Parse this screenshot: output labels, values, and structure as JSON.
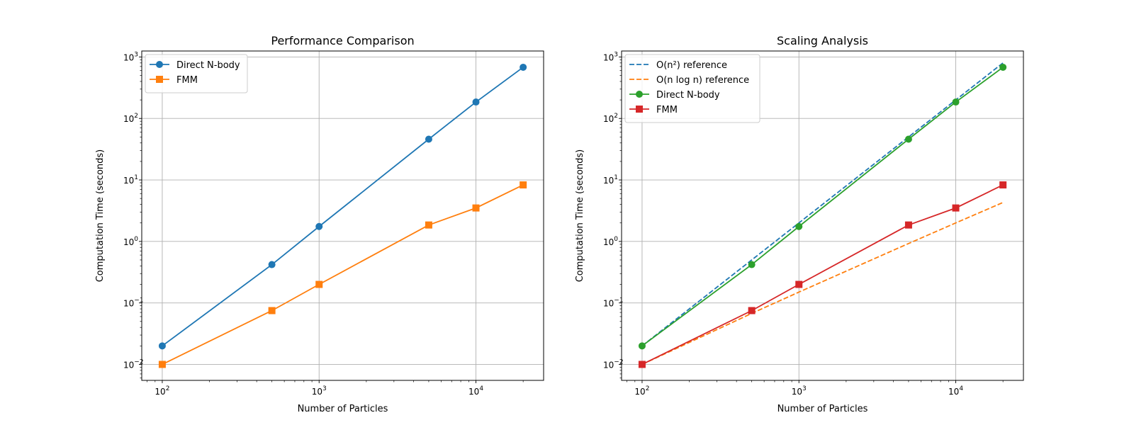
{
  "chart_data": [
    {
      "type": "line",
      "title": "Performance Comparison",
      "xlabel": "Number of Particles",
      "ylabel": "Computation Time (seconds)",
      "xscale": "log",
      "yscale": "log",
      "xlim": [
        74,
        27000
      ],
      "ylim": [
        0.0055,
        1250
      ],
      "xticks": [
        {
          "base": "10",
          "exp": "2",
          "value": 100
        },
        {
          "base": "10",
          "exp": "3",
          "value": 1000
        },
        {
          "base": "10",
          "exp": "4",
          "value": 10000
        }
      ],
      "yticks": [
        {
          "base": "10",
          "exp": "−2",
          "value": 0.01
        },
        {
          "base": "10",
          "exp": "−1",
          "value": 0.1
        },
        {
          "base": "10",
          "exp": "0",
          "value": 1
        },
        {
          "base": "10",
          "exp": "1",
          "value": 10
        },
        {
          "base": "10",
          "exp": "2",
          "value": 100
        },
        {
          "base": "10",
          "exp": "3",
          "value": 1000
        }
      ],
      "grid": true,
      "legend_position": "upper left",
      "series": [
        {
          "name": "Direct N-body",
          "color": "#1f77b4",
          "marker": "circle",
          "linestyle": "solid",
          "x": [
            100,
            500,
            1000,
            5000,
            10000,
            20000
          ],
          "values": [
            0.02,
            0.42,
            1.75,
            46,
            185,
            680
          ]
        },
        {
          "name": "FMM",
          "color": "#ff7f0e",
          "marker": "square",
          "linestyle": "solid",
          "x": [
            100,
            500,
            1000,
            5000,
            10000,
            20000
          ],
          "values": [
            0.01,
            0.075,
            0.2,
            1.85,
            3.5,
            8.3
          ]
        }
      ]
    },
    {
      "type": "line",
      "title": "Scaling Analysis",
      "xlabel": "Number of Particles",
      "ylabel": "Computation Time (seconds)",
      "xscale": "log",
      "yscale": "log",
      "xlim": [
        74,
        27000
      ],
      "ylim": [
        0.0055,
        1250
      ],
      "xticks": [
        {
          "base": "10",
          "exp": "2",
          "value": 100
        },
        {
          "base": "10",
          "exp": "3",
          "value": 1000
        },
        {
          "base": "10",
          "exp": "4",
          "value": 10000
        }
      ],
      "yticks": [
        {
          "base": "10",
          "exp": "−2",
          "value": 0.01
        },
        {
          "base": "10",
          "exp": "−1",
          "value": 0.1
        },
        {
          "base": "10",
          "exp": "0",
          "value": 1
        },
        {
          "base": "10",
          "exp": "1",
          "value": 10
        },
        {
          "base": "10",
          "exp": "2",
          "value": 100
        },
        {
          "base": "10",
          "exp": "3",
          "value": 1000
        }
      ],
      "grid": true,
      "legend_position": "upper left",
      "series": [
        {
          "name": "O(n²) reference",
          "color": "#1f77b4",
          "marker": "none",
          "linestyle": "dashed",
          "x": [
            100,
            500,
            1000,
            5000,
            10000,
            20000
          ],
          "values": [
            0.02,
            0.5,
            2,
            50,
            200,
            800
          ]
        },
        {
          "name": "O(n log n) reference",
          "color": "#ff7f0e",
          "marker": "none",
          "linestyle": "dashed",
          "x": [
            100,
            500,
            1000,
            5000,
            10000,
            20000
          ],
          "values": [
            0.01,
            0.0675,
            0.15,
            0.925,
            2.0,
            4.3
          ]
        },
        {
          "name": "Direct N-body",
          "color": "#2ca02c",
          "marker": "circle",
          "linestyle": "solid",
          "x": [
            100,
            500,
            1000,
            5000,
            10000,
            20000
          ],
          "values": [
            0.02,
            0.42,
            1.75,
            46,
            185,
            680
          ]
        },
        {
          "name": "FMM",
          "color": "#d62728",
          "marker": "square",
          "linestyle": "solid",
          "x": [
            100,
            500,
            1000,
            5000,
            10000,
            20000
          ],
          "values": [
            0.01,
            0.075,
            0.2,
            1.85,
            3.5,
            8.3
          ]
        }
      ]
    }
  ]
}
